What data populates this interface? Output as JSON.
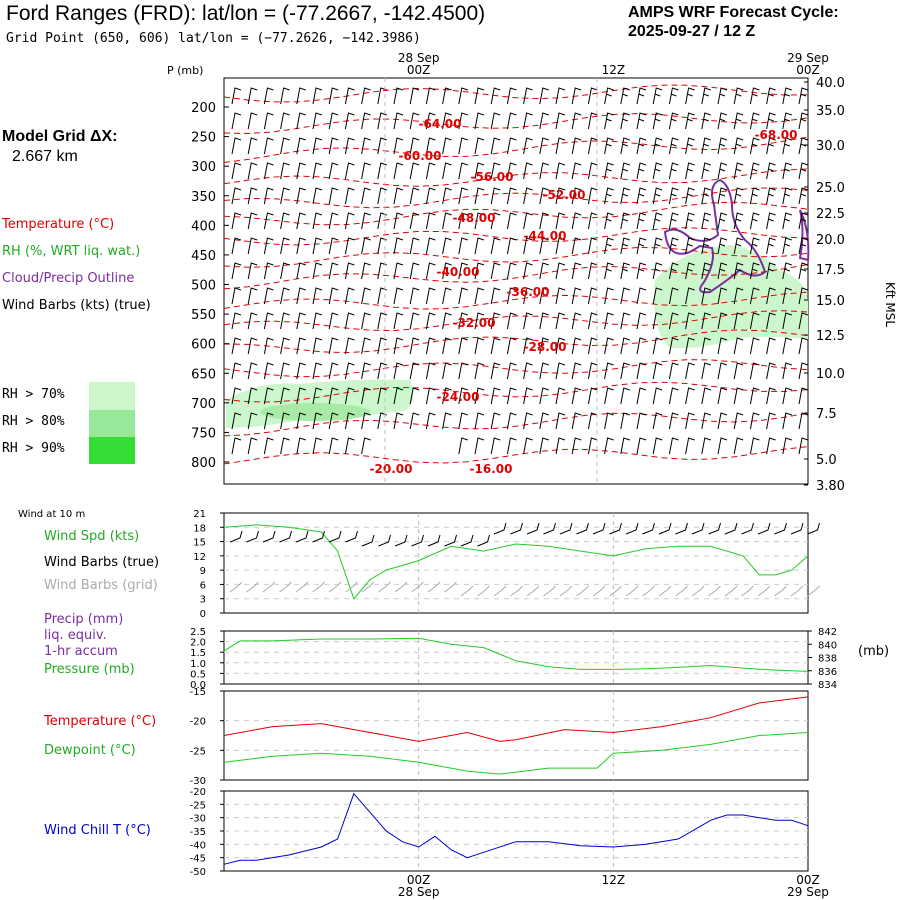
{
  "header": {
    "title": "Ford Ranges (FRD):  lat/lon = (-77.2667, -142.4500)",
    "subtitle": "Grid Point (650, 606) lat/lon = (−77.2626, −142.3986)",
    "cycle_line1": "AMPS WRF Forecast Cycle:",
    "cycle_line2": "2025-09-27 / 12  Z"
  },
  "side": {
    "grid_dx_line1": "Model Grid ΔX:",
    "grid_dx_line2": "2.667 km",
    "legend": {
      "temperature": "Temperature (°C)",
      "rh": "RH (%, WRT liq. wat.)",
      "cloud": "Cloud/Precip Outline",
      "wind": "Wind Barbs (kts) (true)"
    },
    "rh_levels": [
      {
        "label": "RH > 70%",
        "color": "#ccf7cc"
      },
      {
        "label": "RH > 80%",
        "color": "#99e899"
      },
      {
        "label": "RH > 90%",
        "color": "#33dd33"
      }
    ],
    "wind10m_title": "Wind at 10 m",
    "wind_spd": "Wind Spd (kts)",
    "wind_barbs_true": "Wind Barbs (true)",
    "wind_barbs_grid": "Wind Barbs (grid)",
    "precip_line1": "Precip (mm)",
    "precip_line2": "liq. equiv.",
    "precip_line3": "1-hr accum",
    "pressure": "Pressure (mb)",
    "temp": "Temperature (°C)",
    "dewpoint": "Dewpoint (°C)",
    "windchill": "Wind Chill T (°C)"
  },
  "colors": {
    "temperature": "#e00000",
    "rh": "#22cc22",
    "cloud": "#7a2ea0",
    "wind_true": "#000000",
    "wind_grid": "#aaaaaa",
    "windchill": "#0000cc",
    "precip_label": "#7a2ea0"
  },
  "chart_data": [
    {
      "type": "line",
      "panel": "cross-section",
      "xlabel_time_top": [
        {
          "time": "00Z",
          "date": "28 Sep",
          "hour": 12
        },
        {
          "time": "12Z",
          "date": "",
          "hour": 24
        },
        {
          "time": "00Z",
          "date": "29 Sep",
          "hour": 36
        }
      ],
      "ylabel": "P (mb)",
      "ylabel_right": "Kft MSL",
      "pressure_ticks": [
        200,
        250,
        300,
        350,
        400,
        450,
        500,
        550,
        600,
        650,
        700,
        750,
        800
      ],
      "height_ticks": [
        "40.0",
        "35.0",
        "30.0",
        "25.0",
        "22.5",
        "20.0",
        "17.5",
        "15.0",
        "12.5",
        "10.0",
        "7.5",
        "5.0",
        "3.80"
      ],
      "isotherm_labels": [
        "-64.00",
        "-60.00",
        "-56.00",
        "-52.00",
        "-48.00",
        "-44.00",
        "-40.00",
        "-36.00",
        "-32.00",
        "-28.00",
        "-24.00",
        "-20.00",
        "-16.00",
        "-68.00"
      ]
    },
    {
      "type": "line",
      "panel": "wind10m",
      "ylim": [
        0,
        21
      ],
      "yticks": [
        0,
        3,
        6,
        9,
        12,
        15,
        18,
        21
      ],
      "series": [
        {
          "name": "Wind Spd (kts)",
          "x": [
            0,
            2,
            4,
            6,
            7,
            8,
            9,
            10,
            12,
            14,
            16,
            18,
            20,
            22,
            24,
            26,
            28,
            30,
            32,
            33,
            34,
            35,
            36
          ],
          "values": [
            18,
            18.5,
            18,
            17,
            13,
            3,
            7,
            9,
            11,
            14,
            13,
            14.5,
            14,
            13,
            12,
            13.5,
            14,
            14,
            12,
            8,
            8,
            9,
            12
          ]
        }
      ]
    },
    {
      "type": "line",
      "panel": "precip-pressure",
      "ylim": [
        0,
        2.5
      ],
      "yticks": [
        0.0,
        0.5,
        1.0,
        1.5,
        2.0,
        2.5
      ],
      "y2lim": [
        834,
        842
      ],
      "y2ticks": [
        834,
        836,
        838,
        840,
        842
      ],
      "y2label": "(mb)",
      "series": [
        {
          "name": "Pressure (mb)",
          "x": [
            0,
            1,
            3,
            6,
            9,
            12,
            14,
            16,
            18,
            20,
            22,
            24,
            26,
            28,
            30,
            32,
            34,
            36
          ],
          "values": [
            839,
            840.5,
            840.5,
            840.8,
            840.8,
            840.9,
            840,
            839.5,
            837.5,
            836.6,
            836.2,
            836.2,
            836.3,
            836.5,
            836.8,
            836.4,
            836.1,
            835.9
          ]
        }
      ]
    },
    {
      "type": "line",
      "panel": "temperature",
      "ylim": [
        -30,
        -15
      ],
      "yticks": [
        -30,
        -25,
        -20,
        -15
      ],
      "series": [
        {
          "name": "Temperature (°C)",
          "x": [
            0,
            3,
            6,
            9,
            12,
            15,
            17,
            18,
            21,
            24,
            27,
            30,
            33,
            36
          ],
          "values": [
            -22.5,
            -21,
            -20.5,
            -22,
            -23.5,
            -22,
            -23.5,
            -23.2,
            -21.5,
            -22,
            -21,
            -19.5,
            -17,
            -16
          ]
        },
        {
          "name": "Dewpoint (°C)",
          "x": [
            0,
            3,
            6,
            9,
            12,
            15,
            17,
            20,
            23,
            24,
            27,
            30,
            33,
            36
          ],
          "values": [
            -27,
            -26,
            -25.5,
            -26,
            -27,
            -28.5,
            -29,
            -28,
            -28,
            -25.5,
            -25,
            -24,
            -22.5,
            -22
          ]
        }
      ]
    },
    {
      "type": "line",
      "panel": "windchill",
      "ylim": [
        -50,
        -20
      ],
      "yticks": [
        -50,
        -45,
        -40,
        -35,
        -30,
        -25,
        -20
      ],
      "series": [
        {
          "name": "Wind Chill T (°C)",
          "x": [
            0,
            1,
            2,
            4,
            6,
            7,
            8,
            9,
            10,
            11,
            12,
            13,
            14,
            15,
            16,
            18,
            20,
            22,
            24,
            26,
            28,
            30,
            31,
            32,
            33,
            34,
            35,
            36
          ],
          "values": [
            -47.5,
            -46,
            -46,
            -44,
            -41,
            -38,
            -21,
            -28,
            -35,
            -39,
            -41,
            -37,
            -42,
            -45,
            -43,
            -39,
            -39,
            -40.5,
            -41,
            -40,
            -38,
            -31,
            -29,
            -29,
            -30,
            -31,
            -31,
            -33
          ]
        }
      ]
    }
  ],
  "bottom_axis": [
    {
      "time": "00Z",
      "date": "28 Sep",
      "hour": 12
    },
    {
      "time": "12Z",
      "date": "",
      "hour": 24
    },
    {
      "time": "00Z",
      "date": "29 Sep",
      "hour": 36
    }
  ]
}
